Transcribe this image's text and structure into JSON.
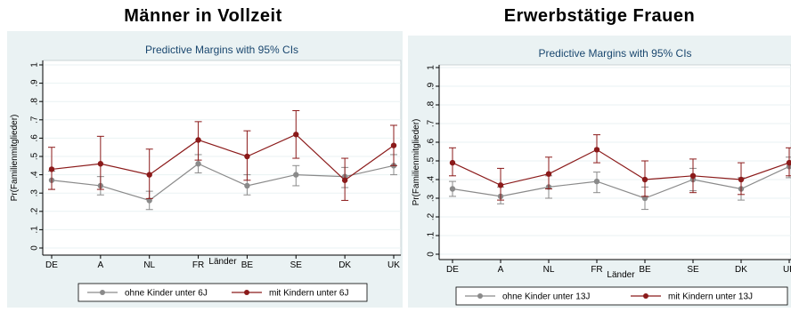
{
  "headings": [
    "Männer in Vollzeit",
    "Erwerbstätige Frauen"
  ],
  "chart_data": [
    {
      "type": "line",
      "title": "Predictive Margins with 95% CIs",
      "xlabel": "Länder",
      "ylabel": "Pr(Familienmitglieder)",
      "categories": [
        "DE",
        "A",
        "NL",
        "FR",
        "BE",
        "SE",
        "DK",
        "UK"
      ],
      "yticks": [
        "0",
        ".1",
        ".2",
        ".3",
        ".4",
        ".5",
        ".6",
        ".7",
        ".8",
        ".9",
        "1"
      ],
      "ylim": [
        0,
        1
      ],
      "grid": true,
      "legend_position": "bottom",
      "series": [
        {
          "name": "ohne Kinder unter 6J",
          "color": "#8a8a8a",
          "values": [
            0.37,
            0.34,
            0.26,
            0.46,
            0.34,
            0.4,
            0.39,
            0.45
          ],
          "ci_low": [
            0.32,
            0.29,
            0.21,
            0.41,
            0.29,
            0.34,
            0.33,
            0.4
          ],
          "ci_high": [
            0.42,
            0.39,
            0.31,
            0.51,
            0.4,
            0.45,
            0.44,
            0.51
          ]
        },
        {
          "name": "mit Kindern unter 6J",
          "color": "#8b1a1a",
          "values": [
            0.43,
            0.46,
            0.4,
            0.59,
            0.5,
            0.62,
            0.37,
            0.56
          ],
          "ci_low": [
            0.32,
            0.32,
            0.27,
            0.48,
            0.37,
            0.49,
            0.26,
            0.45
          ],
          "ci_high": [
            0.55,
            0.61,
            0.54,
            0.69,
            0.64,
            0.75,
            0.49,
            0.67
          ]
        }
      ]
    },
    {
      "type": "line",
      "title": "Predictive Margins with 95% CIs",
      "xlabel": "Länder",
      "ylabel": "Pr(Familienmitglieder)",
      "categories": [
        "DE",
        "A",
        "NL",
        "FR",
        "BE",
        "SE",
        "DK",
        "UK"
      ],
      "yticks": [
        "0",
        ".1",
        ".2",
        ".3",
        ".4",
        ".5",
        ".6",
        ".7",
        ".8",
        ".9",
        "1"
      ],
      "ylim": [
        0,
        1
      ],
      "grid": true,
      "legend_position": "bottom",
      "series": [
        {
          "name": "ohne Kinder unter 13J",
          "color": "#8a8a8a",
          "values": [
            0.35,
            0.31,
            0.36,
            0.39,
            0.3,
            0.4,
            0.35,
            0.47
          ],
          "ci_low": [
            0.31,
            0.27,
            0.3,
            0.33,
            0.24,
            0.34,
            0.29,
            0.41
          ],
          "ci_high": [
            0.39,
            0.36,
            0.42,
            0.44,
            0.36,
            0.46,
            0.41,
            0.52
          ]
        },
        {
          "name": "mit Kindern unter 13J",
          "color": "#8b1a1a",
          "values": [
            0.49,
            0.37,
            0.43,
            0.56,
            0.4,
            0.42,
            0.4,
            0.49
          ],
          "ci_low": [
            0.42,
            0.29,
            0.35,
            0.49,
            0.31,
            0.33,
            0.32,
            0.42
          ],
          "ci_high": [
            0.57,
            0.46,
            0.52,
            0.64,
            0.5,
            0.51,
            0.49,
            0.57
          ]
        }
      ]
    }
  ]
}
